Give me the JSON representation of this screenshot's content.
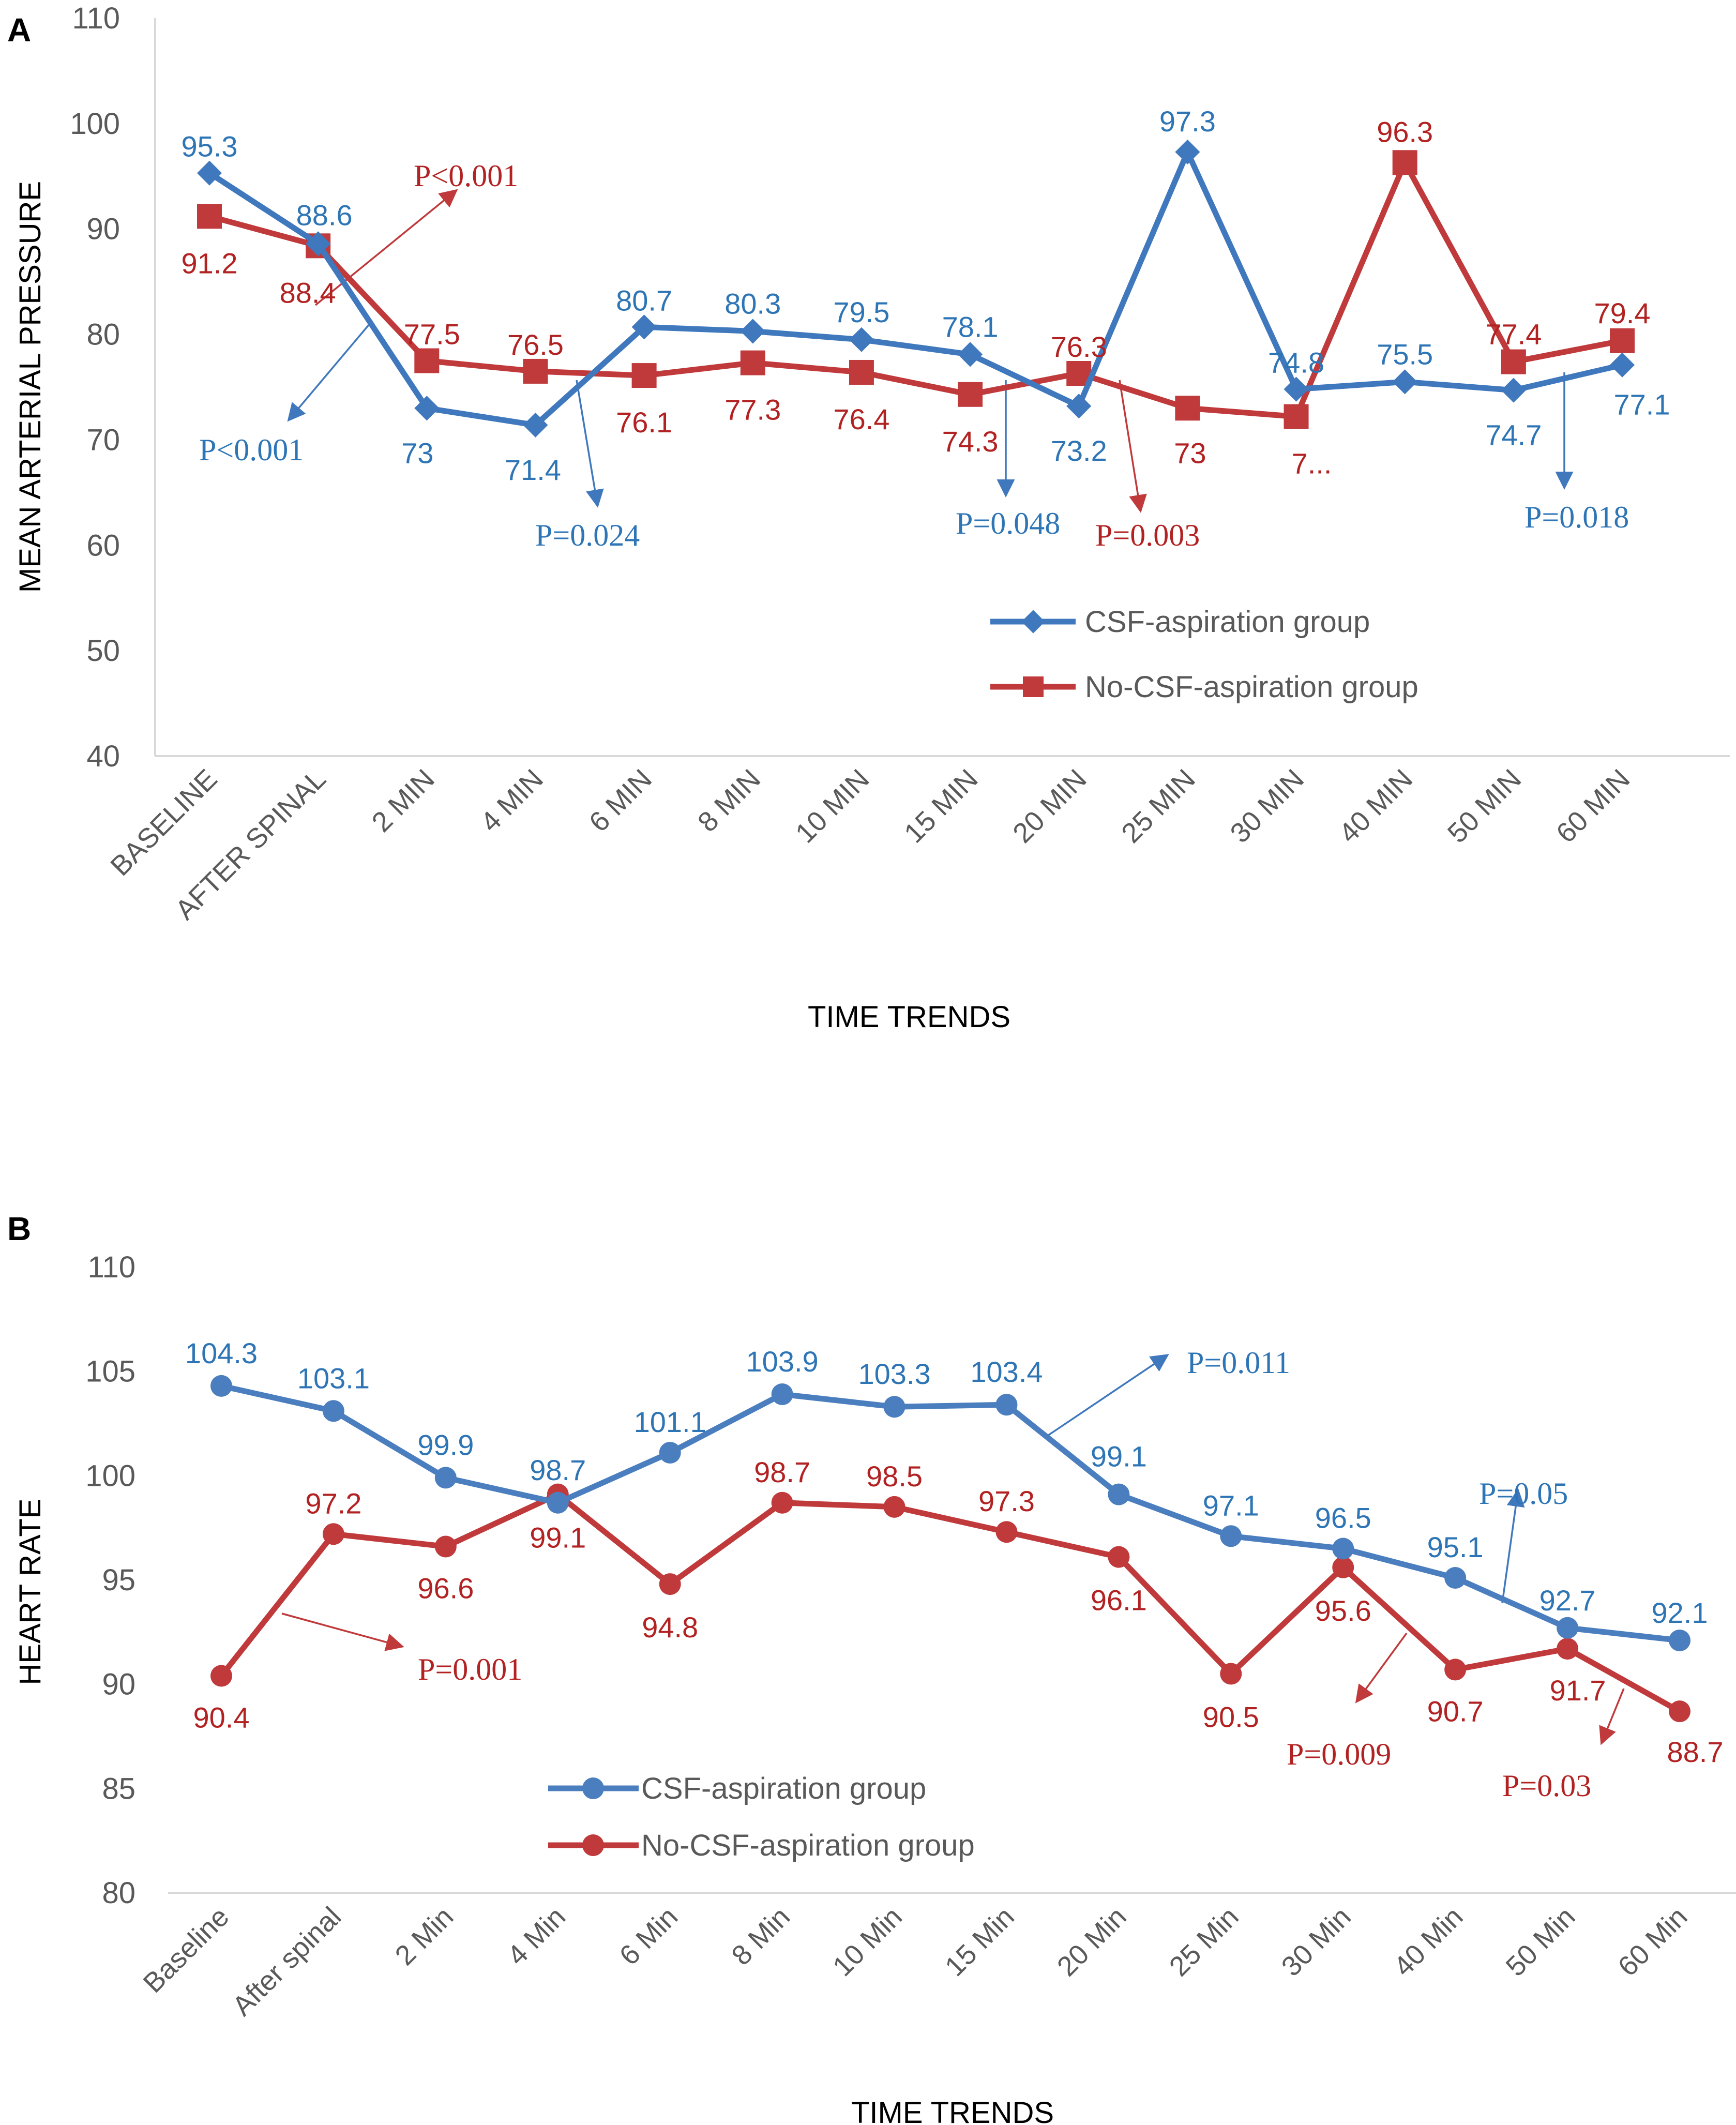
{
  "panels": [
    {
      "letter": "A",
      "colors": {
        "s1": "#3f78bd",
        "s2": "#c0393b",
        "axis": "#d9d9d9",
        "label1": "#2e75b6",
        "label2": "#b22222"
      },
      "chart_data": {
        "type": "line",
        "title": "",
        "xlabel": "TIME TRENDS",
        "ylabel": "MEAN ARTERIAL PRESSURE",
        "ylim": [
          40,
          110
        ],
        "yticks": [
          40,
          50,
          60,
          70,
          80,
          90,
          100,
          110
        ],
        "categories": [
          "BASELINE",
          "AFTER SPINAL",
          "2 MIN",
          "4 MIN",
          "6 MIN",
          "8 MIN",
          "10 MIN",
          "15 MIN",
          "20 MIN",
          "25 MIN",
          "30 MIN",
          "40 MIN",
          "50 MIN",
          "60 MIN"
        ],
        "series": [
          {
            "name": "CSF-aspiration group",
            "marker": "diamond",
            "values": [
              95.3,
              88.6,
              73,
              71.4,
              80.7,
              80.3,
              79.5,
              78.1,
              73.2,
              97.3,
              74.8,
              75.5,
              74.7,
              77.1
            ],
            "labels": [
              "95.3",
              "88.6",
              "73",
              "71.4",
              "80.7",
              "80.3",
              "79.5",
              "78.1",
              "73.2",
              "97.3",
              "74.8",
              "75.5",
              "74.7",
              "77.1"
            ]
          },
          {
            "name": "No-CSF-aspiration group",
            "marker": "square",
            "values": [
              91.2,
              88.4,
              77.5,
              76.5,
              76.1,
              77.3,
              76.4,
              74.3,
              76.3,
              73,
              72.2,
              96.3,
              77.4,
              79.4
            ],
            "labels": [
              "91.2",
              "88.4",
              "77.5",
              "76.5",
              "76.1",
              "77.3",
              "76.4",
              "74.3",
              "76.3",
              "73",
              "7...",
              "96.3",
              "77.4",
              "79.4"
            ]
          }
        ],
        "legend": "inside-bottom-right",
        "grid": false,
        "annotations": [
          "P<0.001",
          "P<0.001",
          "P=0.024",
          "P=0.048",
          "P=0.003",
          "P=0.018"
        ]
      }
    },
    {
      "letter": "B",
      "colors": {
        "s1": "#4a7ebf",
        "s2": "#c0393b",
        "axis": "#d9d9d9",
        "label1": "#2e75b6",
        "label2": "#b22222"
      },
      "chart_data": {
        "type": "line",
        "title": "",
        "xlabel": "TIME TRENDS",
        "ylabel": "HEART RATE",
        "ylim": [
          80,
          110
        ],
        "yticks": [
          80,
          85,
          90,
          95,
          100,
          105,
          110
        ],
        "categories": [
          "Baseline",
          "After spinal",
          "2 Min",
          "4 Min",
          "6 Min",
          "8 Min",
          "10 Min",
          "15 Min",
          "20 Min",
          "25 Min",
          "30 Min",
          "40 Min",
          "50 Min",
          "60 Min"
        ],
        "series": [
          {
            "name": "CSF-aspiration group",
            "marker": "circle",
            "values": [
              104.3,
              103.1,
              99.9,
              98.7,
              101.1,
              103.9,
              103.3,
              103.4,
              99.1,
              97.1,
              96.5,
              95.1,
              92.7,
              92.1
            ],
            "labels": [
              "104.3",
              "103.1",
              "99.9",
              "98.7",
              "101.1",
              "103.9",
              "103.3",
              "103.4",
              "99.1",
              "97.1",
              "96.5",
              "95.1",
              "92.7",
              "92.1"
            ]
          },
          {
            "name": "No-CSF-aspiration group",
            "marker": "circle",
            "values": [
              90.4,
              97.2,
              96.6,
              99.1,
              94.8,
              98.7,
              98.5,
              97.3,
              96.1,
              90.5,
              95.6,
              90.7,
              91.7,
              88.7
            ],
            "labels": [
              "90.4",
              "97.2",
              "96.6",
              "99.1",
              "94.8",
              "98.7",
              "98.5",
              "97.3",
              "96.1",
              "90.5",
              "95.6",
              "90.7",
              "91.7",
              "88.7"
            ]
          }
        ],
        "legend": "inside-bottom-center",
        "grid": false,
        "annotations": [
          "P=0.011",
          "P=0.05",
          "P=0.001",
          "P=0.009",
          "P=0.03"
        ]
      }
    }
  ]
}
